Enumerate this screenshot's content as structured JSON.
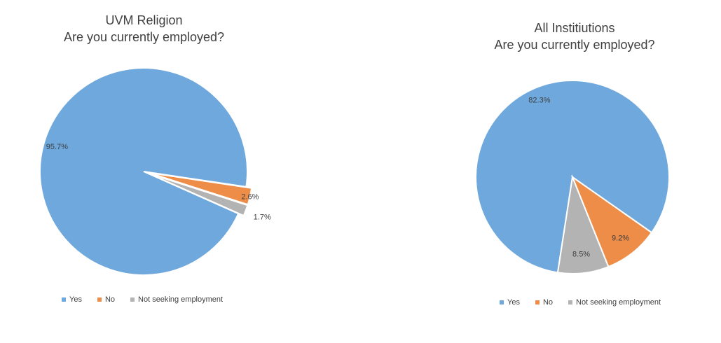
{
  "chart_data": [
    {
      "type": "pie",
      "title": [
        "UVM Religion",
        "Are you currently employed?"
      ],
      "categories": [
        "Yes",
        "No",
        "Not seeking employment"
      ],
      "values": [
        95.7,
        2.6,
        1.7
      ],
      "labels": [
        "95.7%",
        "2.6%",
        "1.7%"
      ],
      "colors": [
        "#6FA8DC",
        "#ED8D47",
        "#B3B3B3"
      ],
      "legend": "bottom"
    },
    {
      "type": "pie",
      "title": [
        "All Institiutions",
        "Are you currently employed?"
      ],
      "categories": [
        "Yes",
        "No",
        "Not seeking employment"
      ],
      "values": [
        82.3,
        9.2,
        8.5
      ],
      "labels": [
        "82.3%",
        "9.2%",
        "8.5%"
      ],
      "colors": [
        "#6FA8DC",
        "#ED8D47",
        "#B3B3B3"
      ],
      "legend": "bottom"
    }
  ]
}
